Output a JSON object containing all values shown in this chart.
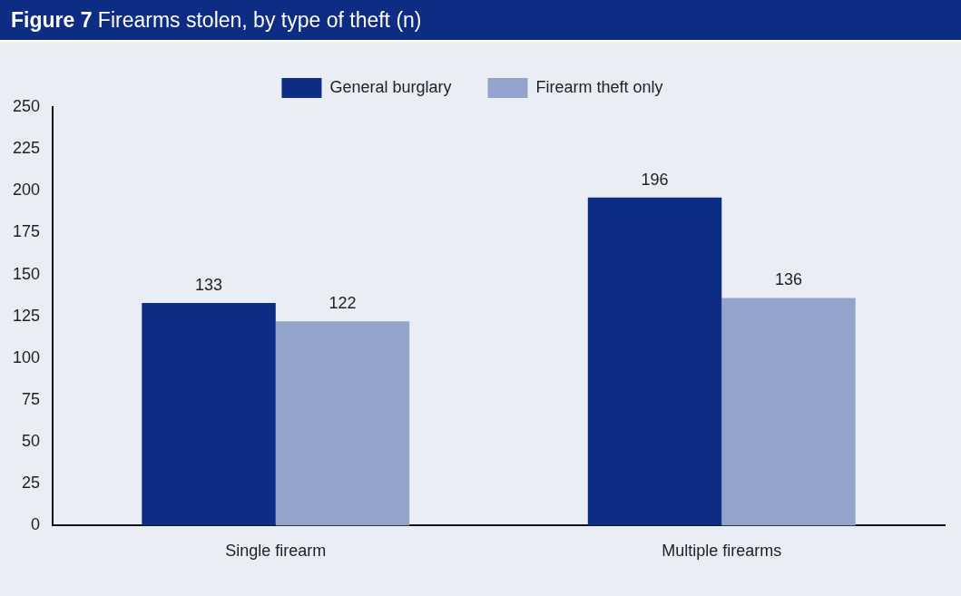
{
  "chart_data": {
    "type": "bar",
    "title": "Figure 7 Firearms stolen, by type of theft (n)",
    "categories": [
      "Single firearm",
      "Multiple firearms"
    ],
    "series": [
      {
        "name": "General burglary",
        "color": "#0c2d83",
        "values": [
          133,
          196
        ]
      },
      {
        "name": "Firearm theft only",
        "color": "#93a3cb",
        "values": [
          122,
          136
        ]
      }
    ],
    "ylim": [
      0,
      250
    ],
    "yticks": [
      0,
      25,
      50,
      75,
      100,
      125,
      150,
      175,
      200,
      225,
      250
    ],
    "grid": false,
    "legend": "top",
    "data_labels": true
  }
}
